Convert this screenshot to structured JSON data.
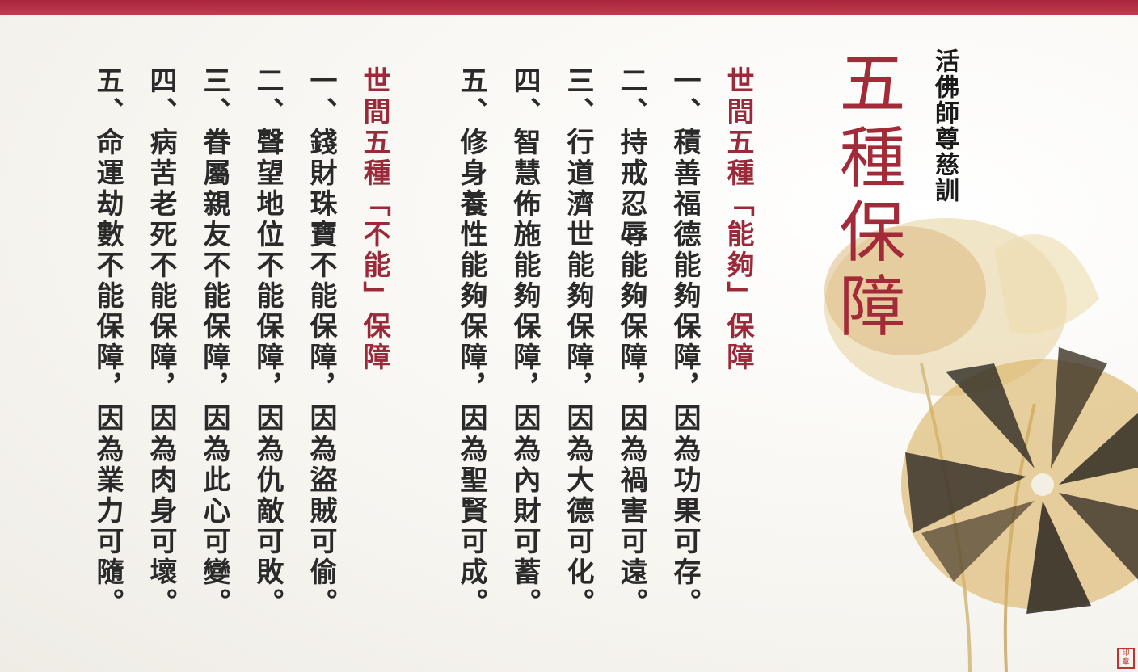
{
  "header_color": "#b52f45",
  "accent_red": "#9a2a3a",
  "title_calligraphy": "五種保障",
  "subtitle": "活佛師尊慈訓",
  "section_can": {
    "heading": "世間五種「能夠」保障",
    "items": [
      "一、積善福德能夠保障，因為功果可存。",
      "二、持戒忍辱能夠保障，因為禍害可遠。",
      "三、行道濟世能夠保障，因為大德可化。",
      "四、智慧佈施能夠保障，因為內財可蓄。",
      "五、修身養性能夠保障，因為聖賢可成。"
    ]
  },
  "section_cannot": {
    "heading": "世間五種「不能」保障",
    "items": [
      "一、錢財珠寶不能保障，因為盜賊可偷。",
      "二、聲望地位不能保障，因為仇敵可敗。",
      "三、眷屬親友不能保障，因為此心可變。",
      "四、病苦老死不能保障，因為肉身可壞。",
      "五、命運劫數不能保障，因為業力可隨。"
    ]
  }
}
